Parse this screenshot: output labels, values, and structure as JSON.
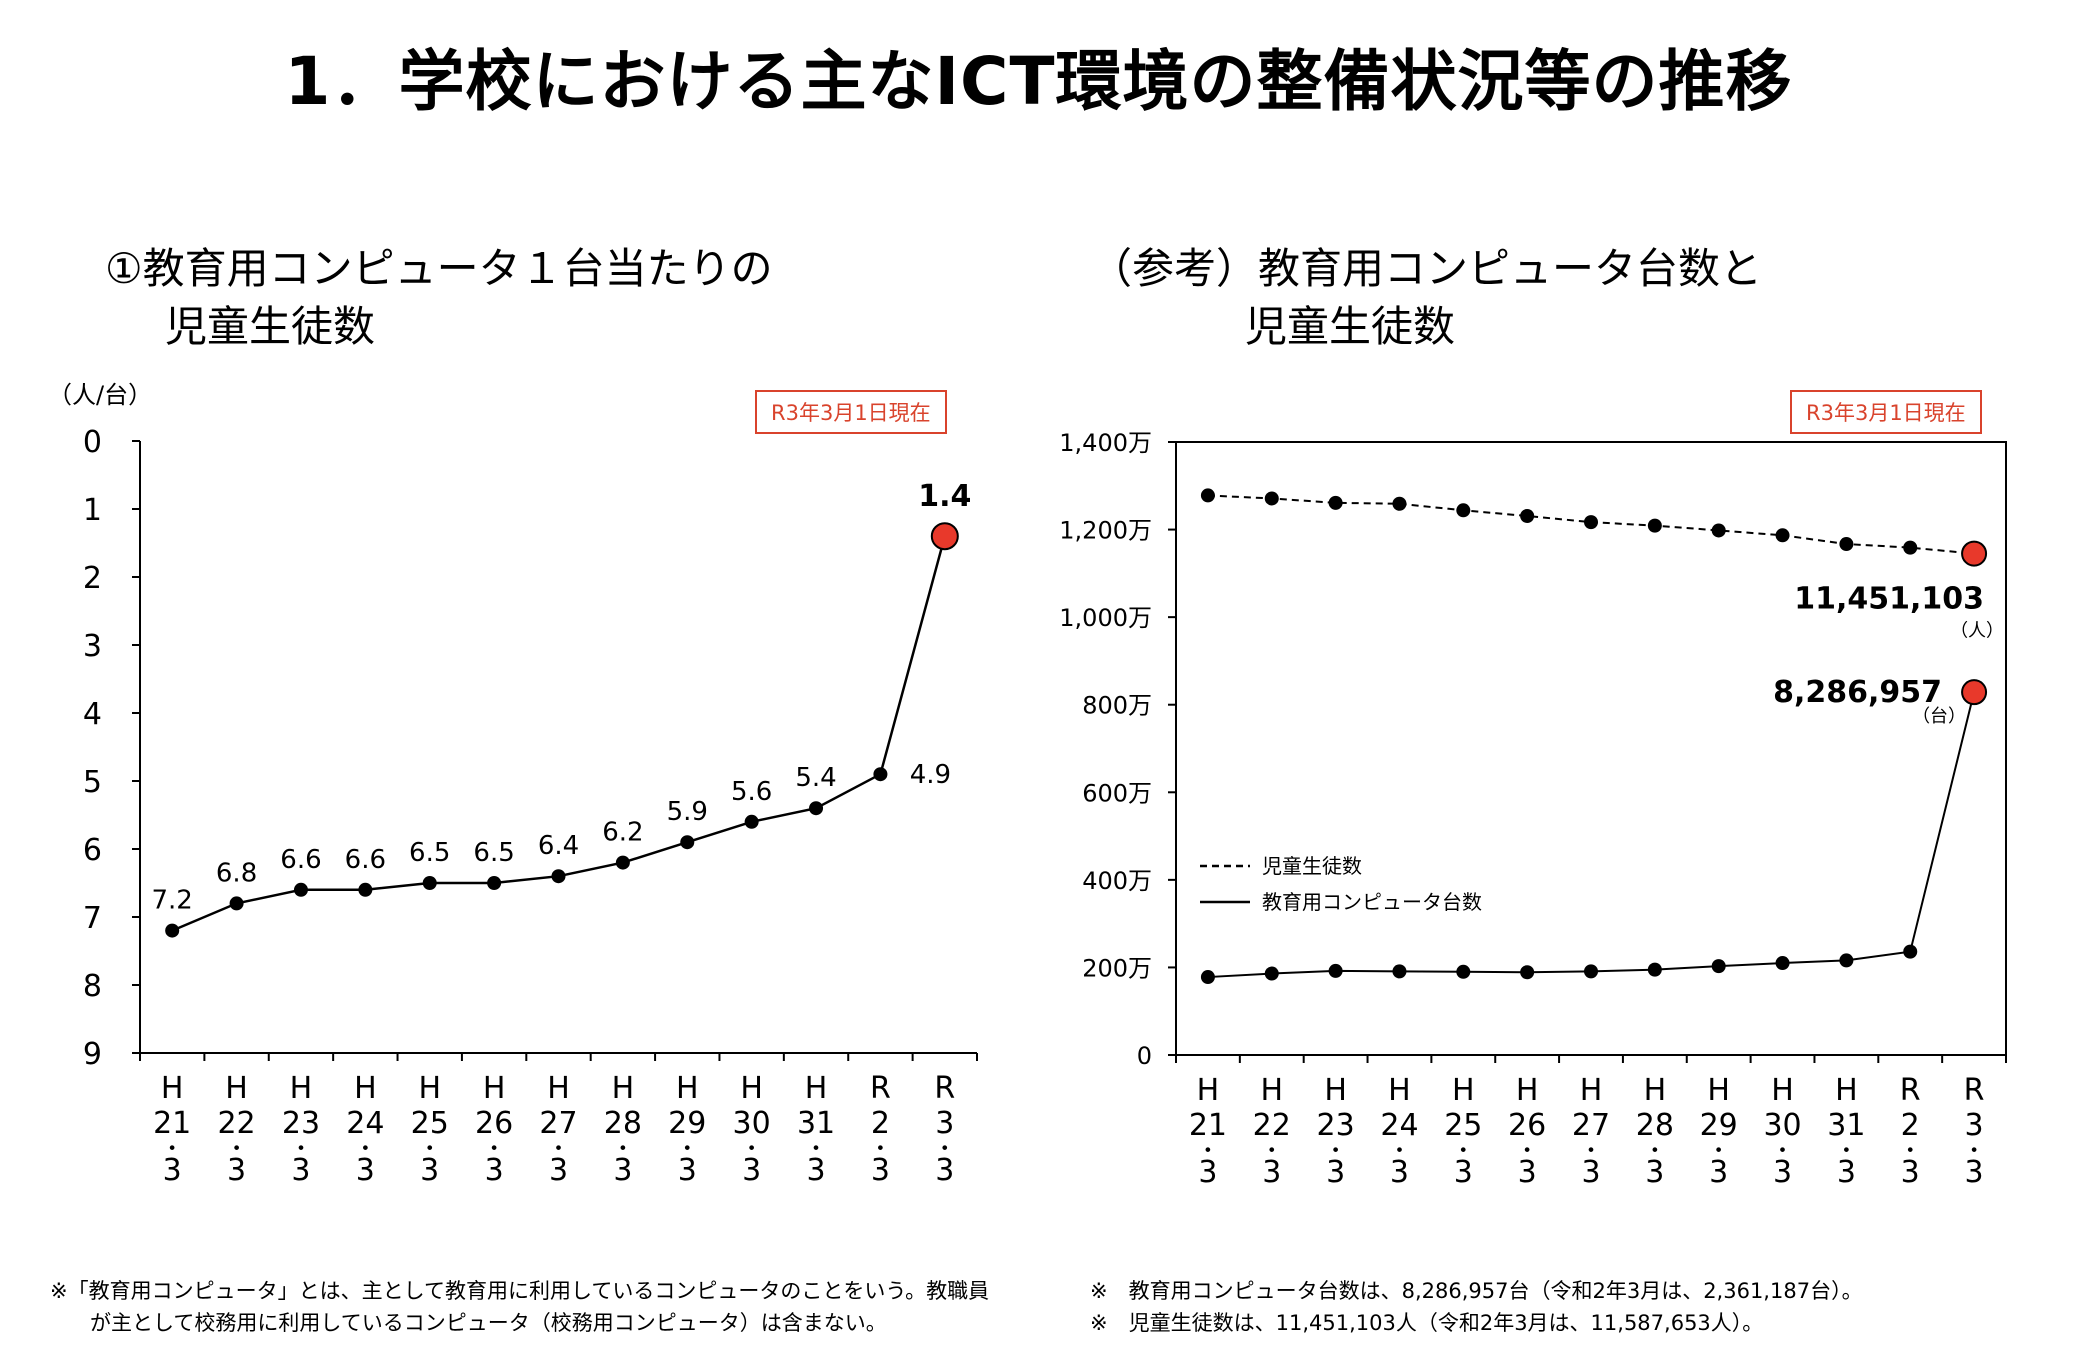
{
  "page_title": "1．学校における主なICT環境の整備状況等の推移",
  "colors": {
    "highlight": "#e8392b",
    "badge": "#d9432c",
    "line": "#000000"
  },
  "chart_data": [
    {
      "type": "line",
      "title_line1": "①教育用コンピュータ１台当たりの",
      "title_line2": "児童生徒数",
      "unit": "（人/台）",
      "badge": "R3年3月1日現在",
      "y_axis": {
        "min": 0,
        "max": 9,
        "inverted": true,
        "ticks": [
          "0",
          "1",
          "2",
          "3",
          "4",
          "5",
          "6",
          "7",
          "8",
          "9"
        ]
      },
      "categories": [
        [
          "H",
          "21",
          "・",
          "3"
        ],
        [
          "H",
          "22",
          "・",
          "3"
        ],
        [
          "H",
          "23",
          "・",
          "3"
        ],
        [
          "H",
          "24",
          "・",
          "3"
        ],
        [
          "H",
          "25",
          "・",
          "3"
        ],
        [
          "H",
          "26",
          "・",
          "3"
        ],
        [
          "H",
          "27",
          "・",
          "3"
        ],
        [
          "H",
          "28",
          "・",
          "3"
        ],
        [
          "H",
          "29",
          "・",
          "3"
        ],
        [
          "H",
          "30",
          "・",
          "3"
        ],
        [
          "H",
          "31",
          "・",
          "3"
        ],
        [
          "R",
          "2",
          "・",
          "3"
        ],
        [
          "R",
          "3",
          "・",
          "3"
        ]
      ],
      "series": [
        {
          "values": [
            7.2,
            6.8,
            6.6,
            6.6,
            6.5,
            6.5,
            6.4,
            6.2,
            5.9,
            5.6,
            5.4,
            4.9,
            1.4
          ],
          "labels": [
            "7.2",
            "6.8",
            "6.6",
            "6.6",
            "6.5",
            "6.5",
            "6.4",
            "6.2",
            "5.9",
            "5.6",
            "5.4",
            "4.9",
            "1.4"
          ],
          "highlight_last": true
        }
      ],
      "grid": false
    },
    {
      "type": "line",
      "title_line1": "（参考）教育用コンピュータ台数と",
      "title_line2": "児童生徒数",
      "badge": "R3年3月1日現在",
      "y_axis": {
        "min": 0,
        "max": 14000000,
        "ticks": [
          "0",
          "200万",
          "400万",
          "600万",
          "800万",
          "1,000万",
          "1,200万",
          "1,400万"
        ]
      },
      "categories": [
        [
          "H",
          "21",
          "・",
          "3"
        ],
        [
          "H",
          "22",
          "・",
          "3"
        ],
        [
          "H",
          "23",
          "・",
          "3"
        ],
        [
          "H",
          "24",
          "・",
          "3"
        ],
        [
          "H",
          "25",
          "・",
          "3"
        ],
        [
          "H",
          "26",
          "・",
          "3"
        ],
        [
          "H",
          "27",
          "・",
          "3"
        ],
        [
          "H",
          "28",
          "・",
          "3"
        ],
        [
          "H",
          "29",
          "・",
          "3"
        ],
        [
          "H",
          "30",
          "・",
          "3"
        ],
        [
          "H",
          "31",
          "・",
          "3"
        ],
        [
          "R",
          "2",
          "・",
          "3"
        ],
        [
          "R",
          "3",
          "・",
          "3"
        ]
      ],
      "series": [
        {
          "name": "児童生徒数",
          "dash": true,
          "values": [
            12780000,
            12710000,
            12610000,
            12590000,
            12440000,
            12310000,
            12170000,
            12090000,
            11980000,
            11870000,
            11670000,
            11587653,
            11451103
          ],
          "end_label": "11,451,103",
          "end_unit": "（人）"
        },
        {
          "name": "教育用コンピュータ台数",
          "dash": false,
          "values": [
            1780000,
            1860000,
            1920000,
            1910000,
            1900000,
            1890000,
            1910000,
            1950000,
            2030000,
            2100000,
            2160000,
            2361187,
            8286957
          ],
          "end_label": "8,286,957",
          "end_unit": "（台）"
        }
      ],
      "legend": "bottom-left inside",
      "grid": false
    }
  ],
  "notes": {
    "left_line1": "※「教育用コンピュータ」とは、主として教育用に利用しているコンピュータのことをいう。教職員",
    "left_line2": "が主として校務用に利用しているコンピュータ（校務用コンピュータ）は含まない。",
    "right_line1": "※　教育用コンピュータ台数は、8,286,957台（令和2年3月は、2,361,187台）。",
    "right_line2": "※　児童生徒数は、11,451,103人（令和2年3月は、11,587,653人）。"
  }
}
